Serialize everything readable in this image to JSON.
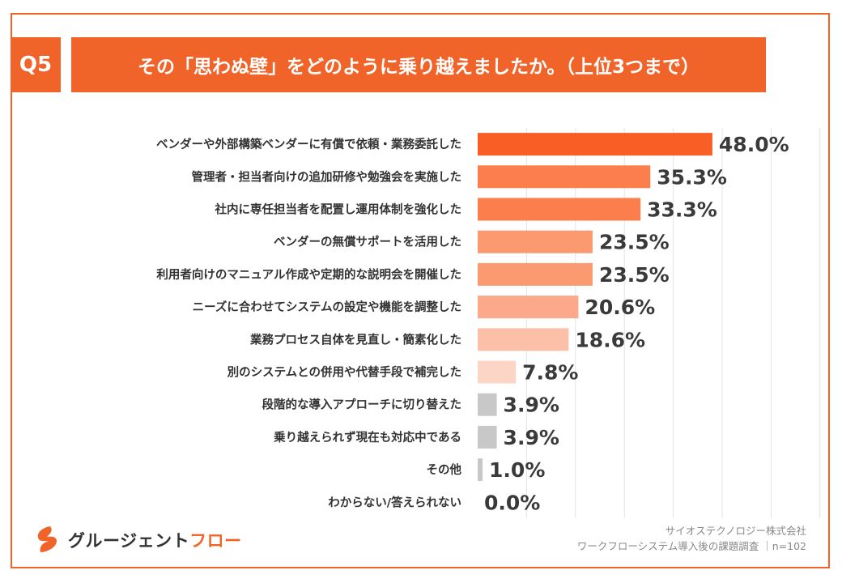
{
  "header": {
    "badge": "Q5",
    "title": "その「思わぬ壁」をどのように乗り越えましたか。（上位3つまで）"
  },
  "colors": {
    "accent": "#f0642a",
    "bar_tiers": [
      "#f95e25",
      "#fb7e4c",
      "#fb7e4c",
      "#fb9a71",
      "#fb9a71",
      "#fba98a",
      "#fcc0a8",
      "#fdd5c6",
      "#c8c8c8",
      "#c8c8c8",
      "#c8c8c8",
      "#c8c8c8"
    ]
  },
  "chart_data": {
    "type": "bar",
    "orientation": "horizontal",
    "categories": [
      "ベンダーや外部構築ベンダーに有償で依頼・業務委託した",
      "管理者・担当者向けの追加研修や勉強会を実施した",
      "社内に専任担当者を配置し運用体制を強化した",
      "ベンダーの無償サポートを活用した",
      "利用者向けのマニュアル作成や定期的な説明会を開催した",
      "ニーズに合わせてシステムの設定や機能を調整した",
      "業務プロセス自体を見直し・簡素化した",
      "別のシステムとの併用や代替手段で補完した",
      "段階的な導入アプローチに切り替えた",
      "乗り越えられず現在も対応中である",
      "その他",
      "わからない/答えられない"
    ],
    "values": [
      48.0,
      35.3,
      33.3,
      23.5,
      23.5,
      20.6,
      18.6,
      7.8,
      3.9,
      3.9,
      1.0,
      0.0
    ],
    "value_labels": [
      "48.0%",
      "35.3%",
      "33.3%",
      "23.5%",
      "23.5%",
      "20.6%",
      "18.6%",
      "7.8%",
      "3.9%",
      "3.9%",
      "1.0%",
      "0.0%"
    ],
    "unit": "%",
    "xlim": [
      0,
      70
    ],
    "grid": true
  },
  "logo": {
    "text_main": "グルージェント",
    "text_accent": "フロー"
  },
  "credit": {
    "line1": "サイオステクノロジー株式会社",
    "line2": "ワークフローシステム導入後の課題調査 ｜n=102"
  }
}
